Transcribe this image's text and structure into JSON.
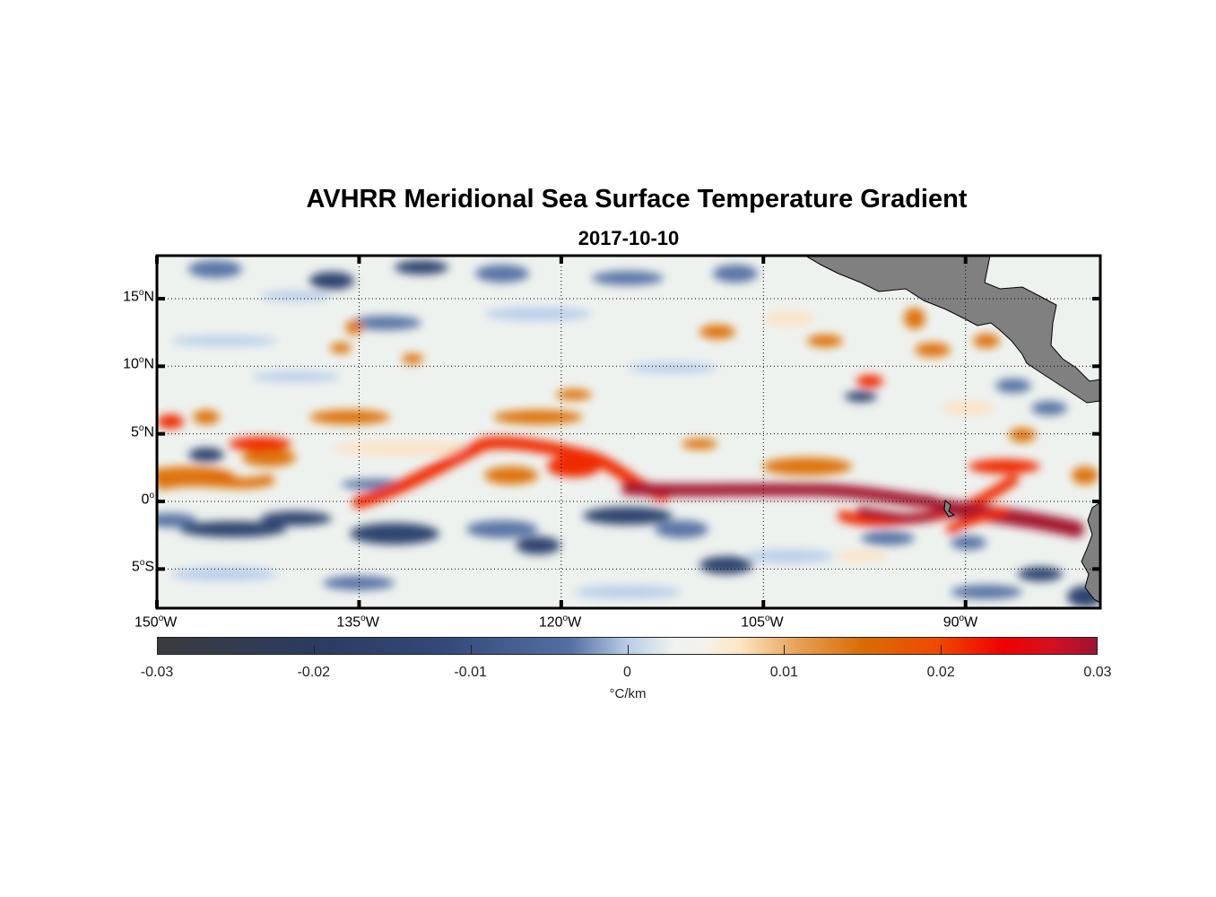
{
  "chart_data": {
    "type": "heatmap",
    "title": "AVHRR Meridional Sea Surface Temperature Gradient",
    "subtitle": "2017-10-10",
    "projection": "lon-lat map",
    "lon_range": [
      -150,
      -80
    ],
    "lat_range": [
      -8,
      18
    ],
    "x_ticks": [
      {
        "value": -150,
        "deg": "150",
        "hem": "W"
      },
      {
        "value": -135,
        "deg": "135",
        "hem": "W"
      },
      {
        "value": -120,
        "deg": "120",
        "hem": "W"
      },
      {
        "value": -105,
        "deg": "105",
        "hem": "W"
      },
      {
        "value": -90,
        "deg": "90",
        "hem": "W"
      }
    ],
    "y_ticks": [
      {
        "value": 15,
        "deg": "15",
        "hem": "N"
      },
      {
        "value": 10,
        "deg": "10",
        "hem": "N"
      },
      {
        "value": 5,
        "deg": "5",
        "hem": "N"
      },
      {
        "value": 0,
        "deg": "0",
        "hem": ""
      },
      {
        "value": -5,
        "deg": "5",
        "hem": "S"
      }
    ],
    "grid": "dotted",
    "colorbar": {
      "label": "°C/km",
      "range": [
        -0.03,
        0.03
      ],
      "ticks": [
        "-0.03",
        "-0.02",
        "-0.01",
        "0",
        "0.01",
        "0.02",
        "0.03"
      ],
      "location": "bottom"
    },
    "land_color": "#808080"
  }
}
